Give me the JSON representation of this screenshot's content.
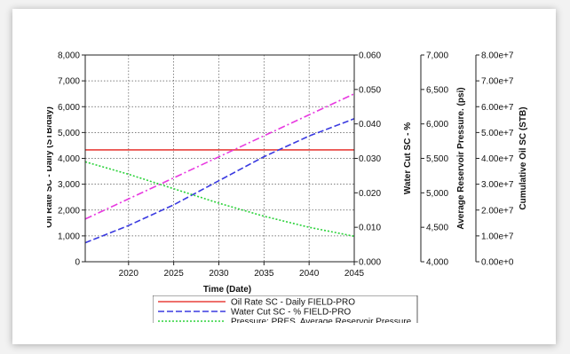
{
  "chart_data": {
    "type": "line",
    "xlabel": "Time (Date)",
    "x_ticks": [
      2020,
      2025,
      2030,
      2035,
      2040,
      2045
    ],
    "xlim": [
      2015.2,
      2045
    ],
    "axes": [
      {
        "id": "oil_rate",
        "side": "left",
        "label": "Oil Rate SC - Daily (STB/day)",
        "ylim": [
          0,
          8000
        ],
        "ticks": [
          "0",
          "1,000",
          "2,000",
          "3,000",
          "4,000",
          "5,000",
          "6,000",
          "7,000",
          "8,000"
        ]
      },
      {
        "id": "water_cut",
        "side": "right",
        "label": "Water Cut SC - %",
        "ylim": [
          0,
          0.06
        ],
        "ticks": [
          "0.000",
          "0.010",
          "0.020",
          "0.030",
          "0.040",
          "0.050",
          "0.060"
        ]
      },
      {
        "id": "pressure",
        "side": "right",
        "label": "Average Reservoir Pressure. (psi)",
        "ylim": [
          4000,
          7000
        ],
        "ticks": [
          "4,000",
          "4,500",
          "5,000",
          "5,500",
          "6,000",
          "6,500",
          "7,000"
        ]
      },
      {
        "id": "cum_oil",
        "side": "right",
        "label": "Cumulative Oil SC (STB)",
        "ylim": [
          0,
          80000000
        ],
        "ticks": [
          "0.00e+0",
          "1.00e+7",
          "2.00e+7",
          "3.00e+7",
          "4.00e+7",
          "5.00e+7",
          "6.00e+7",
          "7.00e+7",
          "8.00e+7"
        ]
      }
    ],
    "series": [
      {
        "name": "Oil Rate SC - Daily FIELD-PRO",
        "axis": "oil_rate",
        "color": "#e8413c",
        "dash": "",
        "x": [
          2015.2,
          2045
        ],
        "y": [
          4330,
          4330
        ]
      },
      {
        "name": "Water Cut SC - % FIELD-PRO",
        "axis": "water_cut",
        "color": "#3a3ae0",
        "dash": "7,3",
        "x": [
          2015.2,
          2020,
          2025,
          2030,
          2035,
          2040,
          2045
        ],
        "y": [
          0.0055,
          0.0105,
          0.0165,
          0.0235,
          0.0305,
          0.0365,
          0.0415
        ]
      },
      {
        "name": "Pressure: PRES. Average Reservoir Pressure",
        "axis": "pressure",
        "color": "#2bd23a",
        "dash": "2,2",
        "x": [
          2015.2,
          2020,
          2025,
          2030,
          2035,
          2040,
          2045
        ],
        "y": [
          5450,
          5270,
          5060,
          4850,
          4660,
          4500,
          4370
        ]
      },
      {
        "name": "",
        "axis": "cum_oil",
        "color": "#e83ae0",
        "dash": "8,3,2,3",
        "x": [
          2015.2,
          2045
        ],
        "y": [
          16500000,
          65000000
        ]
      }
    ],
    "grid": true,
    "legend": "bottom"
  }
}
